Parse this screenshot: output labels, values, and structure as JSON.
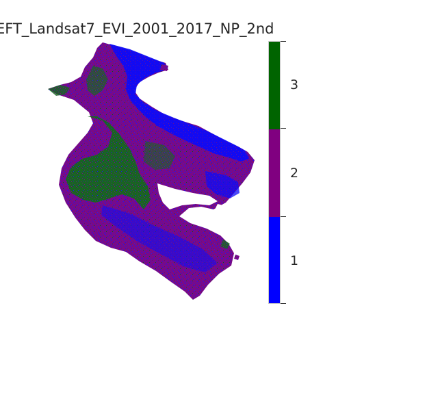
{
  "figure": {
    "title": "EFT_Landsat7_EVI_2001_2017_NP_2nd"
  },
  "legend": {
    "type": "categorical-colorbar",
    "classes": [
      {
        "value": "1",
        "color": "#0000ff"
      },
      {
        "value": "2",
        "color": "#800080"
      },
      {
        "value": "3",
        "color": "#006400"
      }
    ]
  },
  "map": {
    "dominant_class": "2",
    "colors": {
      "class_1": "#0000ff",
      "class_2": "#800080",
      "class_3": "#006400",
      "background": "#ffffff"
    }
  }
}
